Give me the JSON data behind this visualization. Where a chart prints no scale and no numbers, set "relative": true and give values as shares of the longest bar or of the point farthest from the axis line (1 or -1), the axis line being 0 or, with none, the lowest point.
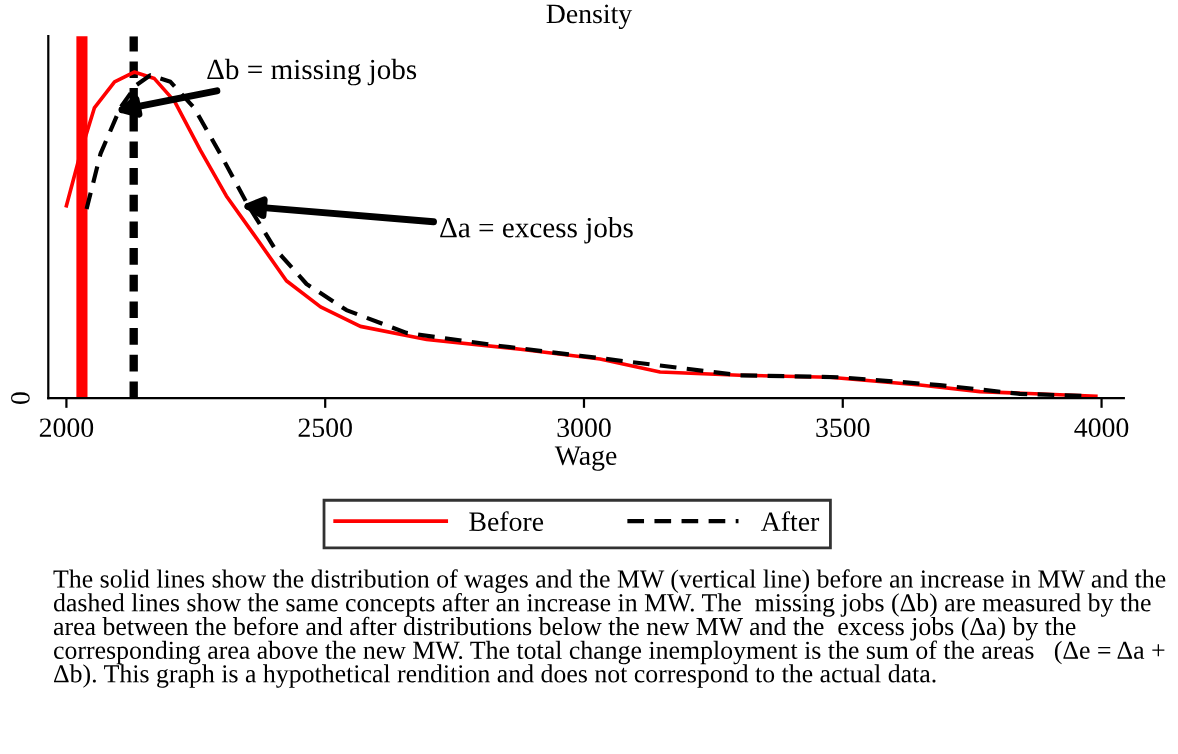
{
  "chart_data": {
    "type": "line",
    "relative": true,
    "ylabel": "Density",
    "xlabel": "Wage",
    "xlim": [
      1965,
      4043
    ],
    "xticks": [
      2000,
      2500,
      3000,
      3500,
      4000
    ],
    "legend": "bottom",
    "series": [
      {
        "name": "Before",
        "color": "#ff0000",
        "line_style": "solid",
        "x": [
          2000,
          2027,
          2054,
          2093,
          2131,
          2170,
          2209,
          2259,
          2309,
          2363,
          2425,
          2491,
          2568,
          2696,
          2877,
          3031,
          3147,
          3301,
          3475,
          3649,
          3765,
          3989
        ],
        "values": [
          0.59,
          0.75,
          0.89,
          0.97,
          1.0,
          0.98,
          0.91,
          0.76,
          0.62,
          0.5,
          0.36,
          0.28,
          0.22,
          0.18,
          0.15,
          0.12,
          0.08,
          0.07,
          0.064,
          0.04,
          0.02,
          0.006
        ]
      },
      {
        "name": "After",
        "color": "#000000",
        "line_style": "dashed",
        "x": [
          2039,
          2066,
          2104,
          2135,
          2162,
          2201,
          2247,
          2297,
          2348,
          2402,
          2464,
          2541,
          2657,
          2838,
          2992,
          3147,
          3301,
          3494,
          3687,
          3842,
          3977
        ],
        "values": [
          0.58,
          0.75,
          0.89,
          0.96,
          0.99,
          0.97,
          0.89,
          0.75,
          0.6,
          0.46,
          0.35,
          0.27,
          0.2,
          0.16,
          0.13,
          0.1,
          0.07,
          0.064,
          0.04,
          0.013,
          0.006
        ]
      }
    ],
    "ref_lines": [
      {
        "axis": "x",
        "value": 2030,
        "color": "#ff0000",
        "line_style": "solid"
      },
      {
        "axis": "x",
        "value": 2130,
        "color": "#000000",
        "line_style": "dashed"
      }
    ],
    "annotations": [
      {
        "text": "Δb = missing jobs",
        "x": 2093,
        "y": 0.88
      },
      {
        "text": "Δa = excess jobs",
        "x": 2336,
        "y": 0.59
      },
      "0",
      "The solid lines show the distribution of wages and the MW (vertical line) before an increase in MW and the dashed lines show the same concepts after an increase in MW. The  missing jobs (Δb) are measured by the area between the before and after distributions below the new MW and the  excess jobs (Δa) by the corresponding area above the new MW. The total change inemployment is the sum of the areas   (Δe = Δa + Δb). This graph is a hypothetical rendition and does not correspond to the actual data."
    ]
  }
}
